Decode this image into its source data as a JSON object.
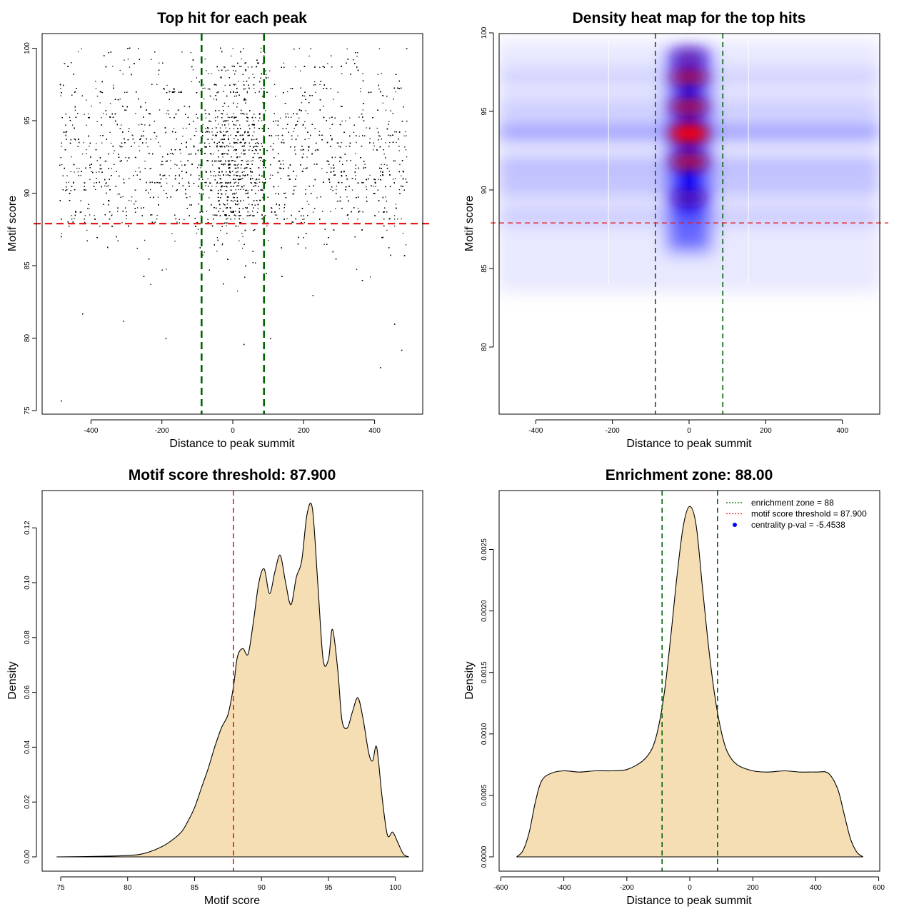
{
  "chart_data": [
    {
      "type": "scatter",
      "title": "Top hit for each peak",
      "xlabel": "Distance to peak summit",
      "ylabel": "Motif score",
      "xlim": [
        -500,
        500
      ],
      "ylim": [
        75,
        100
      ],
      "xticks": [
        -400,
        -200,
        0,
        200,
        400
      ],
      "yticks": [
        75,
        80,
        85,
        90,
        95,
        100
      ],
      "xtick_labels": [
        "-400",
        "-200",
        "0",
        "200",
        "400"
      ],
      "ytick_labels": [
        "75",
        "80",
        "85",
        "90",
        "95",
        "100"
      ],
      "point_density_note": "dense cloud of top-hit scores spanning -490 to 490 bp, concentrated at scores 88-100 with a central enrichment around 0",
      "sample_outliers": [
        {
          "x": -485,
          "y": 75.7
        },
        {
          "x": 415,
          "y": 78.0
        },
        {
          "x": 475,
          "y": 79.2
        },
        {
          "x": -190,
          "y": 80.0
        },
        {
          "x": 105,
          "y": 80.0
        },
        {
          "x": 30,
          "y": 79.6
        },
        {
          "x": -310,
          "y": 81.2
        },
        {
          "x": -425,
          "y": 81.7
        },
        {
          "x": 455,
          "y": 81.0
        }
      ],
      "hlines": [
        {
          "y": 87.9,
          "color": "#e31a1c",
          "style": "dashed"
        }
      ],
      "vlines": [
        {
          "x": -88,
          "color": "#006400",
          "style": "dashed"
        },
        {
          "x": 88,
          "color": "#006400",
          "style": "dashed"
        }
      ],
      "grid": false
    },
    {
      "type": "heatmap",
      "title": "Density heat map for the top hits",
      "xlabel": "Distance to peak summit",
      "ylabel": "Motif score",
      "xlim": [
        -500,
        500
      ],
      "ylim": [
        75.7,
        100
      ],
      "xticks": [
        -400,
        -200,
        0,
        200,
        400
      ],
      "yticks": [
        80,
        85,
        90,
        95,
        100
      ],
      "xtick_labels": [
        "-400",
        "-200",
        "0",
        "200",
        "400"
      ],
      "ytick_labels": [
        "80",
        "85",
        "90",
        "95",
        "100"
      ],
      "color_scale": [
        "#ffffff",
        "#0000ff",
        "#ff0000"
      ],
      "hotspots": [
        {
          "x": 0,
          "y": 93.6,
          "intensity": 1.0
        },
        {
          "x": 0,
          "y": 91.8,
          "intensity": 0.8
        },
        {
          "x": 0,
          "y": 95.3,
          "intensity": 0.75
        },
        {
          "x": 0,
          "y": 97.2,
          "intensity": 0.7
        },
        {
          "x": 0,
          "y": 98.5,
          "intensity": 0.5
        },
        {
          "x": 0,
          "y": 89.5,
          "intensity": 0.55
        }
      ],
      "bands": [
        {
          "y": 93.7,
          "intensity": 0.6
        },
        {
          "y": 91.5,
          "intensity": 0.35
        },
        {
          "y": 90.2,
          "intensity": 0.3
        },
        {
          "y": 95.2,
          "intensity": 0.2
        },
        {
          "y": 88.3,
          "intensity": 0.2
        },
        {
          "y": 97.2,
          "intensity": 0.15
        }
      ],
      "hlines": [
        {
          "y": 87.9,
          "color": "#e31a1c",
          "style": "dashed"
        }
      ],
      "vlines": [
        {
          "x": -88,
          "color": "#006400",
          "style": "dashed"
        },
        {
          "x": 88,
          "color": "#006400",
          "style": "dashed"
        }
      ],
      "grid": false
    },
    {
      "type": "area",
      "title": "Motif score threshold: 87.900",
      "xlabel": "Motif score",
      "ylabel": "Density",
      "xlim": [
        74.7,
        101
      ],
      "ylim": [
        -0.005,
        0.13
      ],
      "xticks": [
        75,
        80,
        85,
        90,
        95,
        100
      ],
      "yticks": [
        0.0,
        0.02,
        0.04,
        0.06,
        0.08,
        0.1,
        0.12
      ],
      "xtick_labels": [
        "75",
        "80",
        "85",
        "90",
        "95",
        "100"
      ],
      "ytick_labels": [
        "0.00",
        "0.02",
        "0.04",
        "0.06",
        "0.08",
        "0.10",
        "0.12"
      ],
      "x": [
        74.7,
        78,
        80,
        81,
        82,
        83,
        84,
        84.5,
        85,
        85.5,
        86,
        86.5,
        87,
        87.5,
        87.9,
        88.2,
        88.6,
        89,
        89.4,
        89.8,
        90.2,
        90.6,
        91,
        91.4,
        91.8,
        92.2,
        92.6,
        93,
        93.4,
        93.8,
        94.2,
        94.6,
        95,
        95.3,
        95.7,
        96,
        96.4,
        96.8,
        97.2,
        97.6,
        98,
        98.3,
        98.6,
        99,
        99.4,
        99.8,
        100.2,
        100.6,
        101
      ],
      "values": [
        0.0,
        0.0002,
        0.0005,
        0.001,
        0.0025,
        0.005,
        0.009,
        0.013,
        0.018,
        0.025,
        0.032,
        0.04,
        0.047,
        0.052,
        0.062,
        0.073,
        0.076,
        0.074,
        0.086,
        0.1,
        0.105,
        0.096,
        0.104,
        0.11,
        0.1,
        0.092,
        0.102,
        0.108,
        0.125,
        0.127,
        0.1,
        0.072,
        0.072,
        0.083,
        0.068,
        0.05,
        0.047,
        0.053,
        0.058,
        0.05,
        0.038,
        0.035,
        0.04,
        0.022,
        0.008,
        0.009,
        0.005,
        0.001,
        0.0
      ],
      "fill": "#f5deb3",
      "vlines": [
        {
          "x": 87.9,
          "color": "#e31a1c",
          "style": "dashed"
        }
      ],
      "grid": false
    },
    {
      "type": "area",
      "title": "Enrichment zone: 88.00",
      "xlabel": "Distance to peak summit",
      "ylabel": "Density",
      "xlim": [
        -600,
        600
      ],
      "ylim": [
        -0.00012,
        0.00295
      ],
      "xticks": [
        -600,
        -400,
        -200,
        0,
        200,
        400,
        600
      ],
      "yticks": [
        0.0,
        0.0005,
        0.001,
        0.0015,
        0.002,
        0.0025
      ],
      "xtick_labels": [
        "-600",
        "-400",
        "-200",
        "0",
        "200",
        "400",
        "600"
      ],
      "ytick_labels": [
        "0.0000",
        "0.0005",
        "0.0010",
        "0.0015",
        "0.0020",
        "0.0025"
      ],
      "x": [
        -550,
        -530,
        -510,
        -490,
        -470,
        -440,
        -400,
        -350,
        -300,
        -250,
        -200,
        -150,
        -120,
        -100,
        -80,
        -60,
        -40,
        -20,
        0,
        20,
        40,
        60,
        80,
        100,
        120,
        150,
        200,
        250,
        300,
        350,
        400,
        440,
        470,
        490,
        510,
        530,
        550
      ],
      "values": [
        0.0,
        5e-05,
        0.0002,
        0.00045,
        0.00062,
        0.00068,
        0.0007,
        0.00069,
        0.0007,
        0.0007,
        0.00071,
        0.00078,
        0.00088,
        0.00105,
        0.00135,
        0.0018,
        0.0023,
        0.0027,
        0.00285,
        0.0027,
        0.0022,
        0.0017,
        0.0013,
        0.00102,
        0.00085,
        0.00075,
        0.0007,
        0.00069,
        0.0007,
        0.00069,
        0.00069,
        0.00068,
        0.00055,
        0.00035,
        0.00015,
        4e-05,
        0.0
      ],
      "fill": "#f5deb3",
      "vlines": [
        {
          "x": -88,
          "color": "#006400",
          "style": "dashed"
        },
        {
          "x": 88,
          "color": "#006400",
          "style": "dashed"
        }
      ],
      "legend": {
        "position": "top-right",
        "entries": [
          {
            "label": "enrichment zone = 88",
            "color": "#006400",
            "marker": "dotted-line"
          },
          {
            "label": "motif score threshold = 87.900",
            "color": "#e31a1c",
            "marker": "dotted-line"
          },
          {
            "label": "centrality p-val = -5.4538",
            "color": "#0000ff",
            "marker": "dot"
          }
        ]
      },
      "grid": false
    }
  ]
}
